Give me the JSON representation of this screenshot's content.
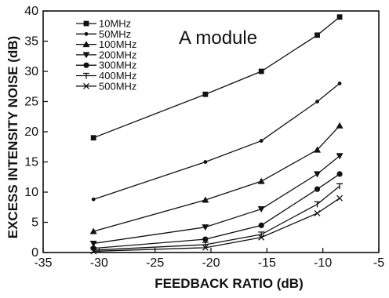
{
  "chart_data": {
    "type": "line",
    "title": "",
    "annotation": "A module",
    "xlabel": "FEEDBACK RATIO (dB)",
    "ylabel": "EXCESS INTENSITY NOISE (dB)",
    "xlim": [
      -35,
      -5
    ],
    "ylim": [
      0,
      40
    ],
    "xticks": [
      -35,
      -30,
      -25,
      -20,
      -15,
      -10,
      -5
    ],
    "yticks": [
      0,
      5,
      10,
      15,
      20,
      25,
      30,
      35,
      40
    ],
    "grid": false,
    "legend_position": "top-left",
    "x": [
      -30.5,
      -20.5,
      -15.5,
      -10.5,
      -8.5
    ],
    "series": [
      {
        "name": "10MHz",
        "marker": "square",
        "values": [
          19,
          26.2,
          30,
          36,
          39
        ]
      },
      {
        "name": "50MHz",
        "marker": "dot",
        "values": [
          8.8,
          15,
          18.5,
          25,
          28
        ]
      },
      {
        "name": "100MHz",
        "marker": "triangle-up",
        "values": [
          3.5,
          8.7,
          11.8,
          17,
          21
        ]
      },
      {
        "name": "200MHz",
        "marker": "triangle-down",
        "values": [
          1.5,
          4.2,
          7.2,
          13,
          16
        ]
      },
      {
        "name": "300MHz",
        "marker": "circle",
        "values": [
          0.7,
          2.2,
          4.5,
          10.5,
          13
        ]
      },
      {
        "name": "400MHz",
        "marker": "tee",
        "values": [
          0.4,
          1.3,
          3,
          8,
          11
        ]
      },
      {
        "name": "500MHz",
        "marker": "cross",
        "values": [
          0.2,
          0.8,
          2.5,
          6.5,
          9
        ]
      }
    ]
  }
}
